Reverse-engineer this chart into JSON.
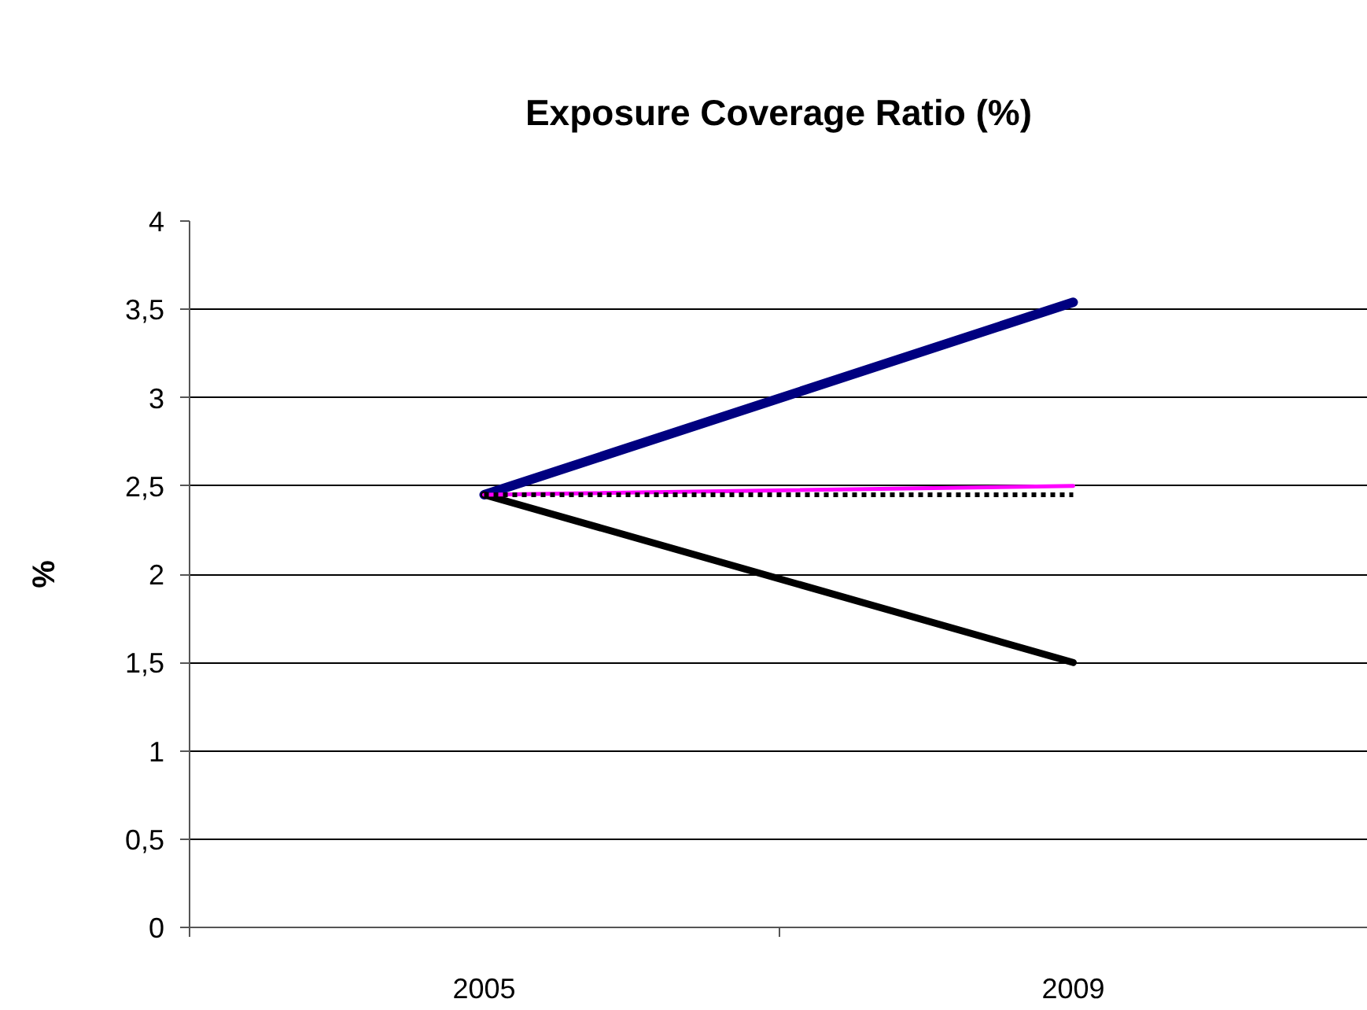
{
  "chart_data": {
    "type": "line",
    "title": "Exposure Coverage Ratio (%)",
    "ylabel": "%",
    "categories": [
      "2005",
      "2009"
    ],
    "series": [
      {
        "color": "#000080",
        "values": [
          2.45,
          3.54
        ],
        "line_style": "solid"
      },
      {
        "color": "#000000",
        "values": [
          2.45,
          1.5
        ],
        "line_style": "solid"
      },
      {
        "color": "#ff00ff",
        "values": [
          2.45,
          2.5
        ],
        "line_style": "solid"
      },
      {
        "color": "#000000",
        "values": [
          2.45,
          2.45
        ],
        "line_style": "dotted"
      }
    ],
    "ylim": [
      0,
      4
    ],
    "yticks": [
      0,
      {
        "value": 0.5,
        "label": "0,5"
      },
      1,
      {
        "value": 1.5,
        "label": "1,5"
      },
      2,
      {
        "value": 2.5,
        "label": "2,5"
      },
      3,
      {
        "value": 3.5,
        "label": "3,5"
      },
      4
    ],
    "grid": "y"
  }
}
